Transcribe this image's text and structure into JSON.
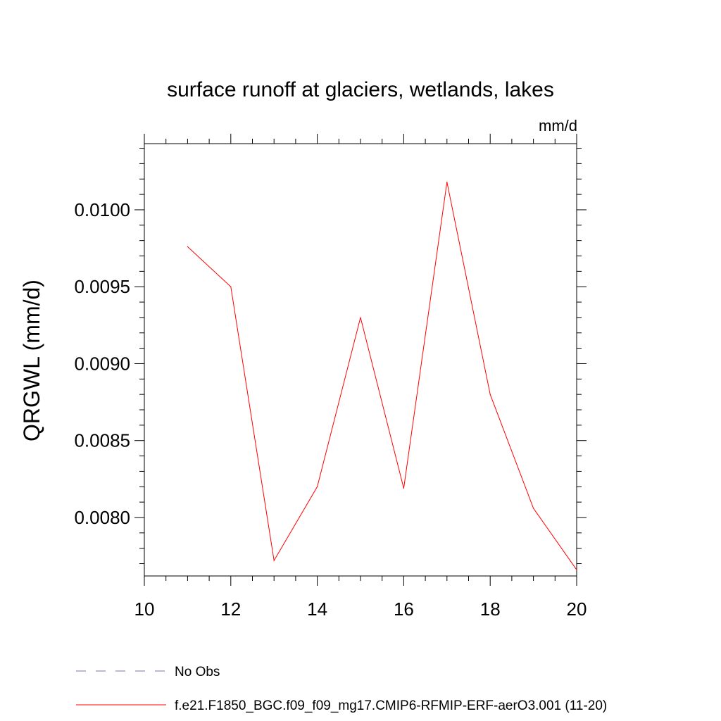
{
  "chart_data": {
    "type": "line",
    "title": "surface runoff at glaciers, wetlands, lakes",
    "units": "mm/d",
    "ylabel": "QRGWL  (mm/d)",
    "xlabel": "",
    "xlim": [
      10,
      20
    ],
    "ylim": [
      0.00762,
      0.01043
    ],
    "x_ticks": [
      10,
      12,
      14,
      16,
      18,
      20
    ],
    "x_tick_labels": [
      "10",
      "12",
      "14",
      "16",
      "18",
      "20"
    ],
    "y_ticks": [
      0.008,
      0.0085,
      0.009,
      0.0095,
      0.01
    ],
    "y_tick_labels": [
      "0.0080",
      "0.0085",
      "0.0090",
      "0.0095",
      "0.0100"
    ],
    "grid": false,
    "legend_position": "bottom",
    "series": [
      {
        "name": "f.e21.F1850_BGC.f09_f09_mg17.CMIP6-RFMIP-ERF-aerO3.001 (11-20)",
        "color": "#ff0000",
        "style": "solid",
        "x": [
          11,
          12,
          13,
          14,
          15,
          16,
          17,
          18,
          19,
          20
        ],
        "y": [
          0.00976,
          0.0095,
          0.00772,
          0.0082,
          0.0093,
          0.00819,
          0.01018,
          0.0088,
          0.00806,
          0.00766
        ]
      }
    ],
    "legend": [
      {
        "label": "No Obs",
        "color": "#7b6fb0",
        "style": "dashed"
      },
      {
        "label": "f.e21.F1850_BGC.f09_f09_mg17.CMIP6-RFMIP-ERF-aerO3.001 (11-20)",
        "color": "#ff0000",
        "style": "solid"
      }
    ]
  }
}
